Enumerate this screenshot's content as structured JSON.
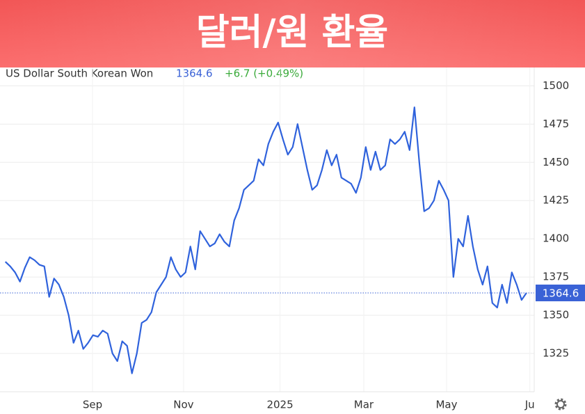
{
  "chart_data": {
    "type": "line",
    "title": "달러/원 환율",
    "instrument": "US Dollar South Korean Won",
    "last_value": 1364.6,
    "change_label": "+6.7 (+0.49%)",
    "ylim": [
      1300,
      1512
    ],
    "yticks": [
      1325,
      1350,
      1375,
      1400,
      1425,
      1450,
      1475,
      1500
    ],
    "xlim": [
      -1.1,
      108.6
    ],
    "xticks": [
      {
        "value": 17.9,
        "label": "Sep"
      },
      {
        "value": 36.6,
        "label": "Nov"
      },
      {
        "value": 56.4,
        "label": "2025"
      },
      {
        "value": 73.6,
        "label": "Mar"
      },
      {
        "value": 90.6,
        "label": "May"
      },
      {
        "value": 107.7,
        "label": "Ju"
      }
    ],
    "grid": true,
    "series": [
      {
        "name": "US Dollar South Korean Won",
        "color": "#2f62dc",
        "values": [
          1385,
          1382,
          1378,
          1372,
          1381,
          1388,
          1386,
          1383,
          1382,
          1362,
          1374,
          1370,
          1362,
          1350,
          1332,
          1340,
          1328,
          1332,
          1337,
          1336,
          1340,
          1338,
          1325,
          1320,
          1333,
          1330,
          1312,
          1325,
          1345,
          1347,
          1352,
          1365,
          1370,
          1375,
          1388,
          1380,
          1375,
          1378,
          1395,
          1380,
          1405,
          1400,
          1395,
          1397,
          1403,
          1398,
          1395,
          1412,
          1420,
          1432,
          1435,
          1438,
          1452,
          1448,
          1462,
          1470,
          1476,
          1465,
          1455,
          1460,
          1475,
          1460,
          1445,
          1432,
          1435,
          1445,
          1458,
          1448,
          1455,
          1440,
          1438,
          1436,
          1430,
          1440,
          1460,
          1445,
          1457,
          1445,
          1448,
          1465,
          1462,
          1465,
          1470,
          1458,
          1486,
          1450,
          1418,
          1420,
          1425,
          1438,
          1432,
          1425,
          1375,
          1400,
          1395,
          1415,
          1395,
          1380,
          1370,
          1382,
          1358,
          1355,
          1370,
          1358,
          1378,
          1370,
          1360,
          1364.6
        ]
      }
    ]
  }
}
